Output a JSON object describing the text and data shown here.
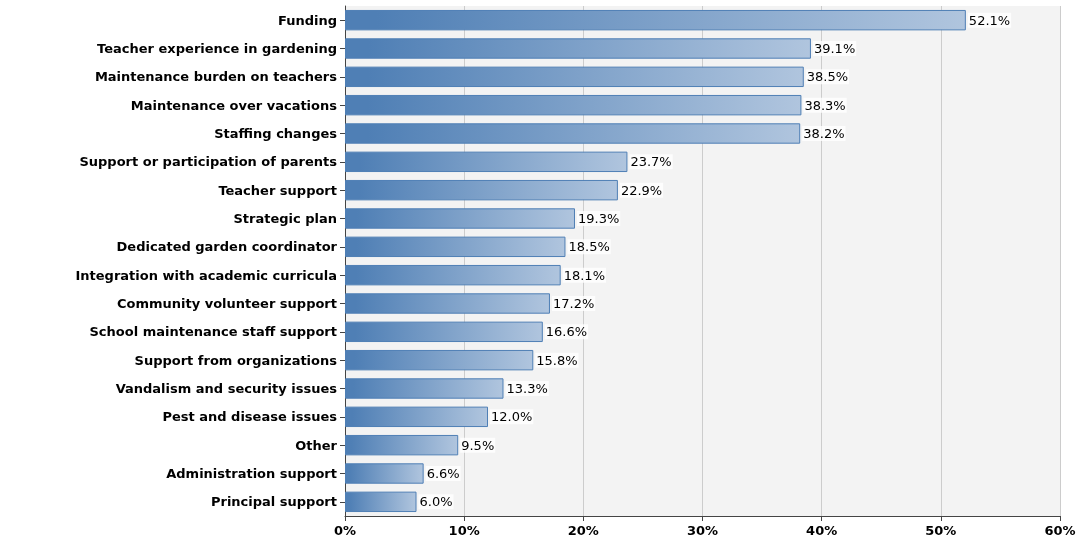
{
  "chart_data": {
    "type": "bar",
    "orientation": "horizontal",
    "categories": [
      "Funding",
      "Teacher experience in gardening",
      "Maintenance burden on teachers",
      "Maintenance over vacations",
      "Staffing changes",
      "Support or participation of parents",
      "Teacher support",
      "Strategic plan",
      "Dedicated garden coordinator",
      "Integration with academic curricula",
      "Community volunteer support",
      "School maintenance staff support",
      "Support from organizations",
      "Vandalism and security issues",
      "Pest and disease issues",
      "Other",
      "Administration support",
      "Principal support"
    ],
    "values": [
      52.1,
      39.1,
      38.5,
      38.3,
      38.2,
      23.7,
      22.9,
      19.3,
      18.5,
      18.1,
      17.2,
      16.6,
      15.8,
      13.3,
      12.0,
      9.5,
      6.6,
      6.0
    ],
    "value_labels": [
      "52.1%",
      "39.1%",
      "38.5%",
      "38.3%",
      "38.2%",
      "23.7%",
      "22.9%",
      "19.3%",
      "18.5%",
      "18.1%",
      "17.2%",
      "16.6%",
      "15.8%",
      "13.3%",
      "12.0%",
      "9.5%",
      "6.6%",
      "6.0%"
    ],
    "color": "#4f7fb5",
    "xlim": [
      0,
      60
    ],
    "xticks": [
      {
        "value": 0,
        "label": "0%"
      },
      {
        "value": 10,
        "label": "10%"
      },
      {
        "value": 20,
        "label": "20%"
      },
      {
        "value": 30,
        "label": "30%"
      },
      {
        "value": 40,
        "label": "40%"
      },
      {
        "value": 50,
        "label": "50%"
      },
      {
        "value": 60,
        "label": "60%"
      }
    ],
    "grid": "x"
  }
}
